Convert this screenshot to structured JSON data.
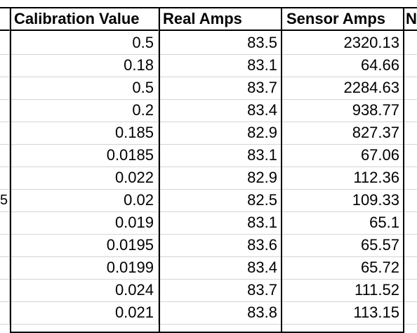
{
  "left_partial_col": {
    "row8_text": "5"
  },
  "columns": {
    "calibration_value": "Calibration Value",
    "real_amps": "Real Amps",
    "sensor_amps": "Sensor Amps",
    "partial_next": "N"
  },
  "rows": [
    {
      "cal": "0.5",
      "real": "83.5",
      "sensor": "2320.13"
    },
    {
      "cal": "0.18",
      "real": "83.1",
      "sensor": "64.66"
    },
    {
      "cal": "0.5",
      "real": "83.7",
      "sensor": "2284.63"
    },
    {
      "cal": "0.2",
      "real": "83.4",
      "sensor": "938.77"
    },
    {
      "cal": "0.185",
      "real": "82.9",
      "sensor": "827.37"
    },
    {
      "cal": "0.0185",
      "real": "83.1",
      "sensor": "67.06"
    },
    {
      "cal": "0.022",
      "real": "82.9",
      "sensor": "112.36"
    },
    {
      "cal": "0.02",
      "real": "82.5",
      "sensor": "109.33"
    },
    {
      "cal": "0.019",
      "real": "83.1",
      "sensor": "65.1"
    },
    {
      "cal": "0.0195",
      "real": "83.6",
      "sensor": "65.57"
    },
    {
      "cal": "0.0199",
      "real": "83.4",
      "sensor": "65.72"
    },
    {
      "cal": "0.024",
      "real": "83.7",
      "sensor": "111.52"
    },
    {
      "cal": "0.021",
      "real": "83.8",
      "sensor": "113.15"
    }
  ]
}
